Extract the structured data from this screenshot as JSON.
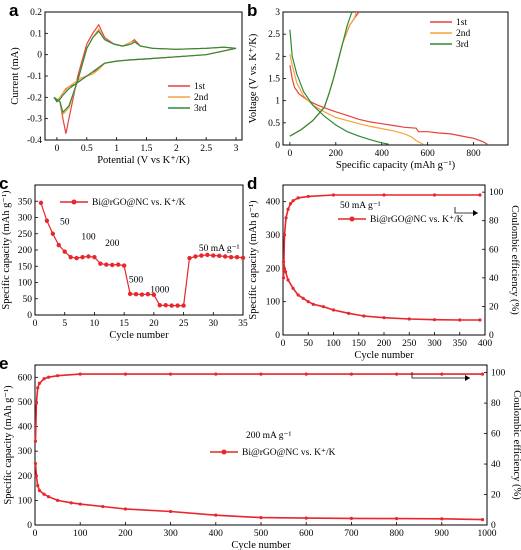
{
  "colors": {
    "first": "#e8413c",
    "second": "#f7a23a",
    "third": "#2e8b3a",
    "red": "#e8262c",
    "axis": "#000000"
  },
  "chart_data": [
    {
      "id": "a",
      "panel_label": "a",
      "type": "line",
      "xlabel": "Potential (V vs K⁺/K)",
      "ylabel": "Current (mA)",
      "xlim": [
        -0.2,
        3.1
      ],
      "ylim": [
        -0.4,
        0.2
      ],
      "xticks": [
        0.0,
        0.5,
        1.0,
        1.5,
        2.0,
        2.5,
        3.0
      ],
      "yticks": [
        -0.4,
        -0.3,
        -0.2,
        -0.1,
        0.0,
        0.1,
        0.2
      ],
      "legend": [
        "1st",
        "2nd",
        "3rd"
      ],
      "legend_position": "center-right",
      "series": [
        {
          "name": "1st",
          "closed": true,
          "x": [
            0.05,
            0.1,
            0.15,
            0.2,
            0.35,
            0.5,
            0.6,
            0.7,
            0.8,
            0.95,
            1.1,
            1.25,
            1.3,
            1.4,
            1.6,
            2.0,
            2.5,
            2.8,
            3.0,
            2.5,
            2.0,
            1.5,
            1.2,
            1.0,
            0.8,
            0.7,
            0.6,
            0.5,
            0.4,
            0.3,
            0.2,
            0.15,
            0.1,
            0.05,
            0.0,
            -0.05,
            0.0,
            0.05
          ],
          "y": [
            -0.22,
            -0.3,
            -0.37,
            -0.3,
            -0.1,
            0.05,
            0.1,
            0.14,
            0.08,
            0.05,
            0.04,
            0.06,
            0.07,
            0.04,
            0.03,
            0.025,
            0.03,
            0.035,
            0.03,
            0.0,
            -0.01,
            -0.02,
            -0.025,
            -0.03,
            -0.04,
            -0.06,
            -0.09,
            -0.1,
            -0.12,
            -0.14,
            -0.15,
            -0.16,
            -0.18,
            -0.2,
            -0.22,
            -0.2,
            -0.21,
            -0.22
          ]
        },
        {
          "name": "2nd",
          "closed": true,
          "x": [
            0.05,
            0.1,
            0.2,
            0.35,
            0.5,
            0.6,
            0.7,
            0.8,
            0.95,
            1.1,
            1.25,
            1.3,
            1.4,
            1.6,
            2.0,
            2.5,
            2.8,
            3.0,
            2.5,
            2.0,
            1.5,
            1.2,
            1.0,
            0.8,
            0.7,
            0.6,
            0.5,
            0.4,
            0.3,
            0.2,
            0.1,
            0.05,
            0.0,
            -0.05,
            0.0,
            0.05
          ],
          "y": [
            -0.22,
            -0.28,
            -0.25,
            -0.12,
            0.03,
            0.08,
            0.12,
            0.07,
            0.05,
            0.04,
            0.06,
            0.06,
            0.04,
            0.03,
            0.025,
            0.03,
            0.035,
            0.03,
            0.0,
            -0.01,
            -0.02,
            -0.025,
            -0.03,
            -0.04,
            -0.07,
            -0.09,
            -0.1,
            -0.11,
            -0.13,
            -0.15,
            -0.18,
            -0.2,
            -0.22,
            -0.2,
            -0.21,
            -0.22
          ]
        },
        {
          "name": "3rd",
          "closed": true,
          "x": [
            0.05,
            0.1,
            0.2,
            0.35,
            0.5,
            0.6,
            0.7,
            0.8,
            0.95,
            1.1,
            1.25,
            1.3,
            1.4,
            1.6,
            2.0,
            2.5,
            2.8,
            3.0,
            2.5,
            2.0,
            1.5,
            1.2,
            1.0,
            0.8,
            0.7,
            0.6,
            0.5,
            0.4,
            0.3,
            0.2,
            0.1,
            0.05,
            0.0,
            -0.05,
            0.0,
            0.05
          ],
          "y": [
            -0.22,
            -0.27,
            -0.24,
            -0.12,
            0.03,
            0.08,
            0.11,
            0.07,
            0.05,
            0.04,
            0.05,
            0.06,
            0.04,
            0.03,
            0.025,
            0.03,
            0.035,
            0.03,
            0.0,
            -0.01,
            -0.02,
            -0.025,
            -0.03,
            -0.04,
            -0.06,
            -0.08,
            -0.1,
            -0.12,
            -0.14,
            -0.16,
            -0.19,
            -0.21,
            -0.22,
            -0.2,
            -0.21,
            -0.22
          ]
        }
      ]
    },
    {
      "id": "b",
      "panel_label": "b",
      "type": "line",
      "xlabel": "Specific capacity (mAh g⁻¹)",
      "ylabel": "Voltage (V vs. K⁺/K)",
      "xlim": [
        -30,
        950
      ],
      "ylim": [
        0,
        3.0
      ],
      "xticks": [
        0,
        200,
        400,
        600,
        800
      ],
      "yticks": [
        0.0,
        0.5,
        1.0,
        1.5,
        2.0,
        2.5,
        3.0
      ],
      "legend": [
        "1st",
        "2nd",
        "3rd"
      ],
      "legend_position": "top-right",
      "series": [
        {
          "name": "1st",
          "segments": [
            {
              "x": [
                0,
                10,
                20,
                40,
                80,
                120,
                160,
                200,
                260,
                300,
                350,
                400,
                450,
                500,
                550,
                560,
                600,
                650,
                700,
                750,
                800,
                840,
                860
              ],
              "y": [
                1.8,
                1.5,
                1.3,
                1.15,
                1.0,
                0.9,
                0.82,
                0.75,
                0.65,
                0.58,
                0.52,
                0.48,
                0.44,
                0.4,
                0.38,
                0.3,
                0.3,
                0.27,
                0.25,
                0.2,
                0.15,
                0.08,
                0.02
              ]
            },
            {
              "x": [
                0,
                50,
                100,
                150,
                170,
                190,
                210,
                230,
                260,
                280,
                300
              ],
              "y": [
                0.2,
                0.35,
                0.55,
                0.85,
                1.15,
                1.5,
                1.9,
                2.3,
                2.7,
                2.85,
                3.0
              ]
            }
          ]
        },
        {
          "name": "2nd",
          "segments": [
            {
              "x": [
                0,
                10,
                30,
                60,
                100,
                150,
                200,
                250,
                300,
                350,
                400,
                450,
                500,
                530,
                550,
                580
              ],
              "y": [
                2.05,
                1.8,
                1.4,
                1.1,
                0.9,
                0.75,
                0.62,
                0.55,
                0.48,
                0.42,
                0.37,
                0.32,
                0.25,
                0.18,
                0.1,
                0.02
              ]
            },
            {
              "x": [
                0,
                50,
                100,
                150,
                170,
                190,
                210,
                230,
                260,
                280,
                290
              ],
              "y": [
                0.2,
                0.35,
                0.55,
                0.85,
                1.15,
                1.5,
                1.9,
                2.3,
                2.7,
                2.85,
                3.0
              ]
            }
          ]
        },
        {
          "name": "3rd",
          "segments": [
            {
              "x": [
                0,
                10,
                30,
                60,
                100,
                150,
                200,
                250,
                300,
                350,
                400,
                430
              ],
              "y": [
                2.6,
                2.0,
                1.6,
                1.2,
                0.9,
                0.65,
                0.45,
                0.3,
                0.2,
                0.12,
                0.05,
                0.02
              ]
            },
            {
              "x": [
                0,
                50,
                100,
                150,
                170,
                190,
                210,
                230,
                250,
                260,
                270
              ],
              "y": [
                0.2,
                0.35,
                0.55,
                0.85,
                1.15,
                1.5,
                1.9,
                2.3,
                2.7,
                2.85,
                3.0
              ]
            }
          ]
        }
      ]
    },
    {
      "id": "c",
      "panel_label": "c",
      "type": "line",
      "xlabel": "Cycle number",
      "ylabel": "Specific capacity (mAh g⁻¹)",
      "xlim": [
        0,
        35
      ],
      "ylim": [
        0,
        400
      ],
      "xticks": [
        0,
        5,
        10,
        15,
        20,
        25,
        30,
        35
      ],
      "yticks": [
        0,
        50,
        100,
        150,
        200,
        250,
        300,
        350
      ],
      "legend": [
        "Bi@rGO@NC vs. K⁺/K"
      ],
      "legend_position": "top-center",
      "rate_labels": [
        "50",
        "100",
        "200",
        "500",
        "1000",
        "50 mA g⁻¹"
      ],
      "series": [
        {
          "name": "Bi@rGO@NC vs. K⁺/K",
          "x": [
            1,
            2,
            3,
            4,
            5,
            6,
            7,
            8,
            9,
            10,
            11,
            12,
            13,
            14,
            15,
            16,
            17,
            18,
            19,
            20,
            21,
            22,
            23,
            24,
            25,
            26,
            27,
            28,
            29,
            30,
            31,
            32,
            33,
            34,
            35
          ],
          "y": [
            345,
            290,
            250,
            215,
            195,
            178,
            175,
            178,
            180,
            178,
            158,
            155,
            154,
            155,
            152,
            65,
            64,
            63,
            64,
            62,
            30,
            30,
            29,
            29,
            29,
            175,
            180,
            183,
            185,
            183,
            182,
            180,
            178,
            178,
            176
          ]
        }
      ]
    },
    {
      "id": "d",
      "panel_label": "d",
      "type": "line",
      "xlabel": "Cycle number",
      "ylabel": "Specific capacity (mAh g⁻¹)",
      "y2label": "Coulombic efficiency (%)",
      "xlim": [
        0,
        400
      ],
      "ylim": [
        0,
        450
      ],
      "y2lim": [
        0,
        105
      ],
      "xticks": [
        0,
        50,
        100,
        150,
        200,
        250,
        300,
        350,
        400
      ],
      "yticks": [
        0,
        100,
        200,
        300,
        400
      ],
      "y2ticks": [
        0,
        20,
        40,
        60,
        80,
        100
      ],
      "legend": [
        "Bi@rGO@NC vs. K⁺/K"
      ],
      "annotation": "50 mA g⁻¹",
      "series": [
        {
          "name": "Bi@rGO@NC vs. K⁺/K",
          "axis": "left",
          "x": [
            1,
            5,
            10,
            20,
            30,
            40,
            50,
            60,
            80,
            100,
            130,
            160,
            200,
            250,
            300,
            350,
            390
          ],
          "y": [
            220,
            190,
            165,
            140,
            120,
            110,
            100,
            92,
            85,
            75,
            65,
            57,
            52,
            48,
            46,
            45,
            45
          ]
        },
        {
          "name": "Coulombic efficiency",
          "axis": "right",
          "x": [
            1,
            3,
            6,
            10,
            15,
            20,
            30,
            50,
            100,
            200,
            300,
            390
          ],
          "y": [
            40,
            70,
            82,
            88,
            92,
            94,
            96,
            97,
            98,
            98,
            98,
            98
          ]
        }
      ]
    },
    {
      "id": "e",
      "panel_label": "e",
      "type": "line",
      "xlabel": "Cycle number",
      "ylabel": "Specific capacity (mAh g⁻¹)",
      "y2label": "Coulombic efficiency (%)",
      "xlim": [
        0,
        1000
      ],
      "ylim": [
        0,
        650
      ],
      "y2lim": [
        0,
        105
      ],
      "xticks": [
        0,
        100,
        200,
        300,
        400,
        500,
        600,
        700,
        800,
        900,
        1000
      ],
      "yticks": [
        0,
        100,
        200,
        300,
        400,
        500,
        600
      ],
      "y2ticks": [
        0,
        20,
        40,
        60,
        80,
        100
      ],
      "legend": [
        "Bi@rGO@NC vs. K⁺/K"
      ],
      "annotation": "200 mA g⁻¹",
      "series": [
        {
          "name": "Bi@rGO@NC vs. K⁺/K",
          "axis": "left",
          "x": [
            1,
            3,
            6,
            10,
            20,
            30,
            50,
            80,
            100,
            150,
            200,
            300,
            400,
            500,
            600,
            700,
            800,
            900,
            990
          ],
          "y": [
            250,
            200,
            160,
            140,
            125,
            115,
            100,
            90,
            85,
            75,
            65,
            55,
            40,
            30,
            28,
            27,
            26,
            25,
            22
          ]
        },
        {
          "name": "Coulombic efficiency",
          "axis": "right",
          "x": [
            1,
            3,
            6,
            10,
            20,
            30,
            50,
            100,
            200,
            300,
            400,
            500,
            600,
            700,
            800,
            900,
            990
          ],
          "y": [
            55,
            80,
            90,
            93,
            96,
            97,
            98,
            99,
            99,
            99,
            99,
            99,
            99,
            99,
            99,
            99,
            99
          ]
        }
      ]
    }
  ]
}
